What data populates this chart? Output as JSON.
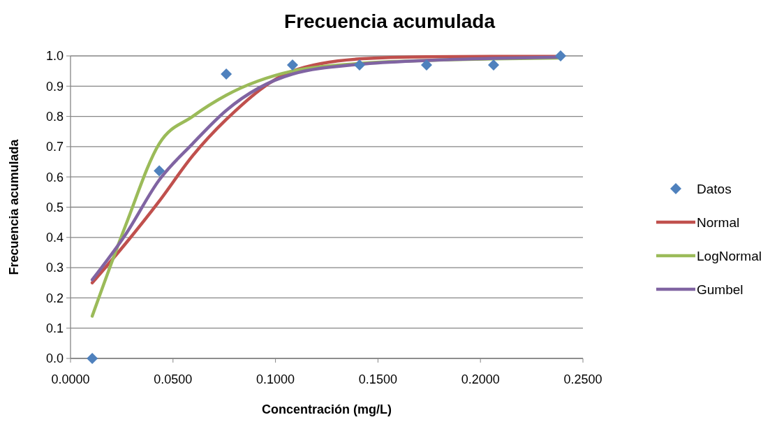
{
  "chart_data": {
    "type": "scatter",
    "title": "Frecuencia acumulada",
    "xlabel": "Concentración (mg/L)",
    "ylabel": "Frecuencia acumulada",
    "xlim": [
      0,
      0.25
    ],
    "xticks": [
      {
        "value": 0,
        "label": "0.0000"
      },
      {
        "value": 0.05,
        "label": "0.0500"
      },
      {
        "value": 0.1,
        "label": "0.1000"
      },
      {
        "value": 0.15,
        "label": "0.1500"
      },
      {
        "value": 0.2,
        "label": "0.2000"
      },
      {
        "value": 0.25,
        "label": "0.2500"
      }
    ],
    "ylim": [
      0,
      1
    ],
    "yticks": [
      {
        "value": 0,
        "label": "0.0"
      },
      {
        "value": 0.1,
        "label": "0.1"
      },
      {
        "value": 0.2,
        "label": "0.2"
      },
      {
        "value": 0.3,
        "label": "0.3"
      },
      {
        "value": 0.4,
        "label": "0.4"
      },
      {
        "value": 0.5,
        "label": "0.5"
      },
      {
        "value": 0.6,
        "label": "0.6"
      },
      {
        "value": 0.7,
        "label": "0.7"
      },
      {
        "value": 0.8,
        "label": "0.8"
      },
      {
        "value": 0.9,
        "label": "0.9"
      },
      {
        "value": 1,
        "label": "1.0"
      }
    ],
    "grid": "y",
    "legend": "right",
    "series": [
      {
        "name": "Datos",
        "type": "scatter",
        "marker": "diamond",
        "color": "#4f81bd",
        "x": [
          0.0106,
          0.0433,
          0.076,
          0.1083,
          0.141,
          0.1737,
          0.2064,
          0.2391
        ],
        "values": [
          0,
          0.62,
          0.94,
          0.97,
          0.97,
          0.97,
          0.97,
          1.0
        ]
      },
      {
        "name": "Normal",
        "type": "line",
        "marker": "none",
        "color": "#c0504d",
        "x": [
          0.0106,
          0.0269,
          0.0433,
          0.0596,
          0.076,
          0.1083,
          0.141,
          0.1737,
          0.2064,
          0.2391
        ],
        "values": [
          0.25,
          0.38,
          0.52,
          0.67,
          0.79,
          0.95,
          0.99,
          0.997,
          0.998,
          0.998
        ]
      },
      {
        "name": "LogNormal",
        "type": "line",
        "marker": "none",
        "color": "#9bbb59",
        "x": [
          0.0106,
          0.0269,
          0.0433,
          0.0596,
          0.076,
          0.1083,
          0.141,
          0.1737,
          0.2064,
          0.2391
        ],
        "values": [
          0.14,
          0.44,
          0.71,
          0.8,
          0.87,
          0.95,
          0.975,
          0.985,
          0.99,
          0.993
        ]
      },
      {
        "name": "Gumbel",
        "type": "line",
        "marker": "none",
        "color": "#8064a2",
        "x": [
          0.0106,
          0.0269,
          0.0433,
          0.0596,
          0.076,
          0.1083,
          0.141,
          0.1737,
          0.2064,
          0.2391
        ],
        "values": [
          0.26,
          0.41,
          0.59,
          0.71,
          0.82,
          0.94,
          0.972,
          0.985,
          0.992,
          0.996
        ]
      }
    ]
  }
}
